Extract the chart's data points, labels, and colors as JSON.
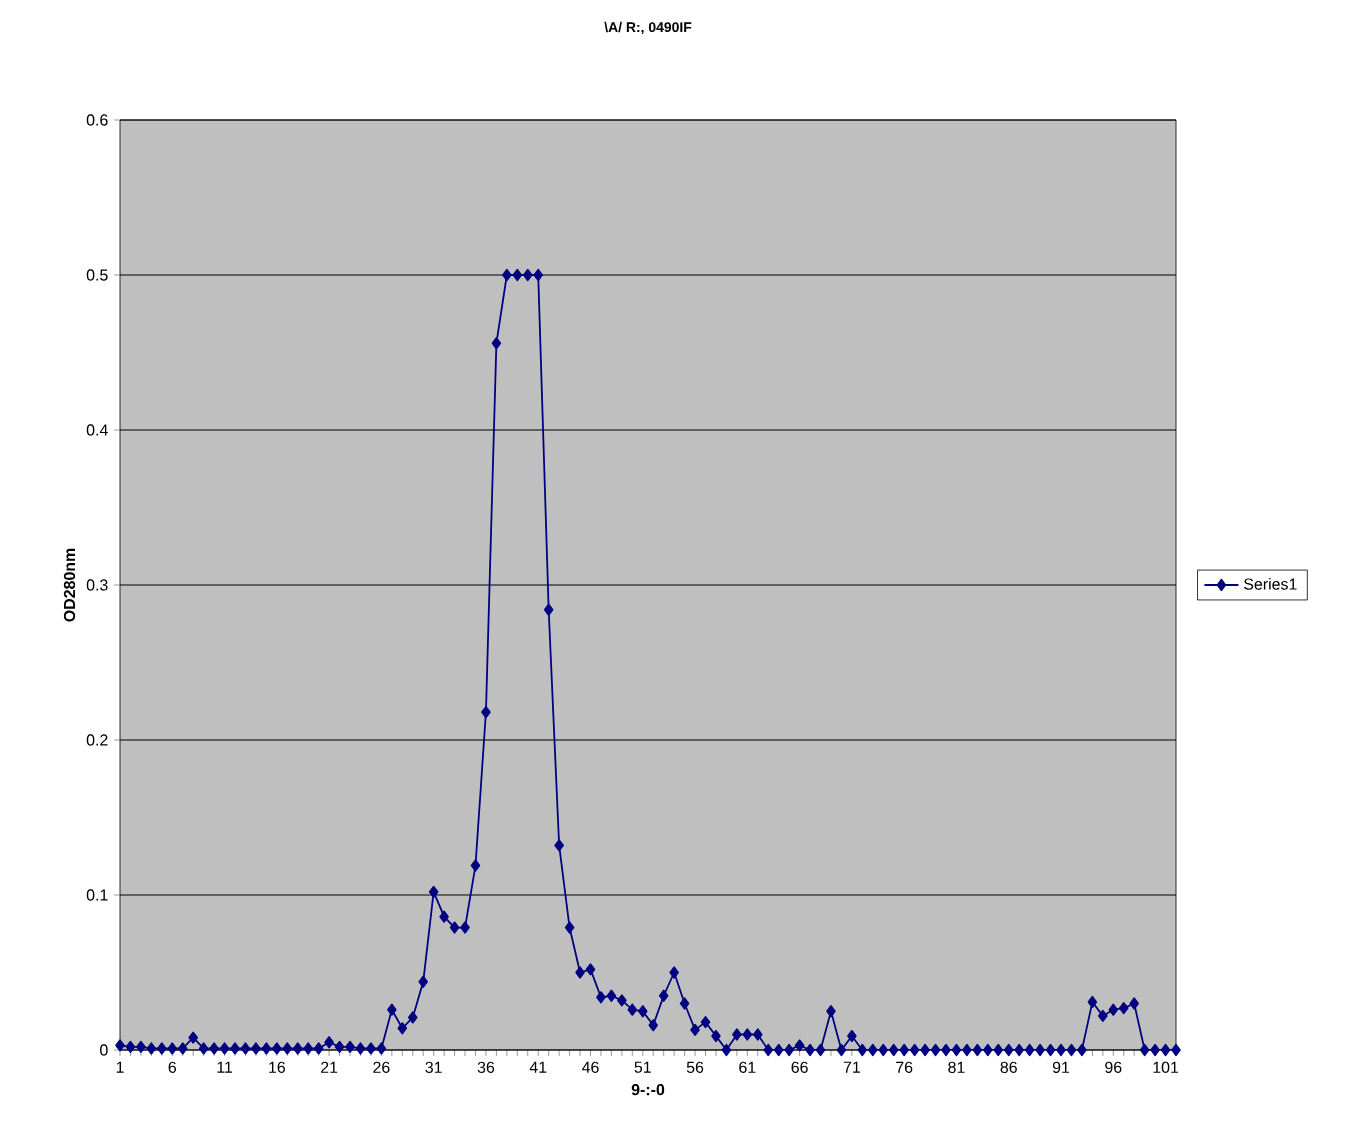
{
  "chart_data": {
    "type": "line",
    "title": "\\A/ R:, 0490IF",
    "xlabel": "9-:-0",
    "ylabel": "OD280nm",
    "categories": [
      "1",
      null,
      null,
      null,
      null,
      "6",
      null,
      null,
      null,
      null,
      "11",
      null,
      null,
      null,
      null,
      "16",
      null,
      null,
      null,
      null,
      "21",
      null,
      null,
      null,
      null,
      "26",
      null,
      null,
      null,
      null,
      "31",
      null,
      null,
      null,
      null,
      "36",
      null,
      null,
      null,
      null,
      "41",
      null,
      null,
      null,
      null,
      "46",
      null,
      null,
      null,
      null,
      "51",
      null,
      null,
      null,
      null,
      "56",
      null,
      null,
      null,
      null,
      "61",
      null,
      null,
      null,
      null,
      "66",
      null,
      null,
      null,
      null,
      "71",
      null,
      null,
      null,
      null,
      "76",
      null,
      null,
      null,
      null,
      "81",
      null,
      null,
      null,
      null,
      "86",
      null,
      null,
      null,
      null,
      "91",
      null,
      null,
      null,
      null,
      "96",
      null,
      null,
      null,
      null,
      "101",
      null
    ],
    "series": [
      {
        "name": "Series1",
        "color": "#000080",
        "values": [
          0.003,
          0.002,
          0.002,
          0.001,
          0.001,
          0.001,
          0.001,
          0.008,
          0.001,
          0.001,
          0.001,
          0.001,
          0.001,
          0.001,
          0.001,
          0.001,
          0.001,
          0.001,
          0.001,
          0.001,
          0.005,
          0.002,
          0.002,
          0.001,
          0.001,
          0.001,
          0.026,
          0.014,
          0.021,
          0.044,
          0.102,
          0.086,
          0.079,
          0.079,
          0.119,
          0.218,
          0.456,
          0.5,
          0.5,
          0.5,
          0.5,
          0.284,
          0.132,
          0.079,
          0.05,
          0.052,
          0.034,
          0.035,
          0.032,
          0.026,
          0.025,
          0.016,
          0.035,
          0.05,
          0.03,
          0.013,
          0.018,
          0.009,
          0,
          0.01,
          0.01,
          0.01,
          0,
          0,
          0,
          0.003,
          0,
          0,
          0.025,
          0,
          0.009,
          0,
          0,
          0,
          0,
          0,
          0,
          0,
          0,
          0,
          0,
          0,
          0,
          0,
          0,
          0,
          0,
          0,
          0,
          0,
          0,
          0,
          0,
          0.031,
          0.022,
          0.026,
          0.027,
          0.03,
          0,
          0,
          0,
          0
        ]
      }
    ],
    "ylim": [
      0,
      0.6
    ],
    "yticks": [
      0,
      0.1,
      0.2,
      0.3,
      0.4,
      0.5,
      0.6
    ],
    "grid": "y",
    "legend": "right",
    "marker": "diamond",
    "line_style": "solid"
  }
}
